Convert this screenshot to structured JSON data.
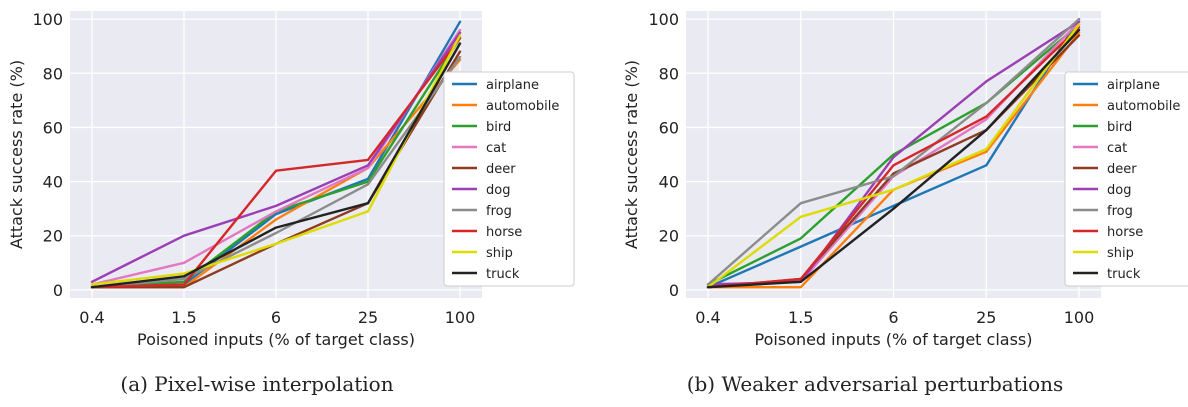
{
  "chart_data": [
    {
      "type": "line",
      "caption": "(a) Pixel-wise interpolation",
      "xlabel": "Poisoned inputs (% of target class)",
      "ylabel": "Attack success rate (%)",
      "categories": [
        "0.4",
        "1.5",
        "6",
        "25",
        "100"
      ],
      "ylim": [
        -3,
        103
      ],
      "yticks": [
        0,
        20,
        40,
        60,
        80,
        100
      ],
      "grid": true,
      "legend": "right",
      "series": [
        {
          "name": "airplane",
          "color": "#1f77b4",
          "values": [
            1,
            2,
            28,
            41,
            99
          ]
        },
        {
          "name": "automobile",
          "color": "#ff7f0e",
          "values": [
            1,
            1,
            26,
            45,
            85
          ]
        },
        {
          "name": "bird",
          "color": "#2ca02c",
          "values": [
            1,
            3,
            29,
            40,
            93
          ]
        },
        {
          "name": "cat",
          "color": "#e377c2",
          "values": [
            2,
            10,
            29,
            45,
            96
          ]
        },
        {
          "name": "deer",
          "color": "#8c3c1f",
          "values": [
            1,
            1,
            17,
            32,
            88
          ]
        },
        {
          "name": "dog",
          "color": "#9b3fb5",
          "values": [
            3,
            20,
            31,
            46,
            95
          ]
        },
        {
          "name": "frog",
          "color": "#8c8c8c",
          "values": [
            1,
            4,
            21,
            39,
            86
          ]
        },
        {
          "name": "horse",
          "color": "#d62728",
          "values": [
            1,
            2,
            44,
            48,
            93
          ]
        },
        {
          "name": "ship",
          "color": "#dcdc00",
          "values": [
            2,
            6,
            17,
            29,
            94
          ]
        },
        {
          "name": "truck",
          "color": "#222222",
          "values": [
            1,
            5,
            23,
            32,
            91
          ]
        }
      ]
    },
    {
      "type": "line",
      "caption": "(b) Weaker adversarial perturbations",
      "xlabel": "Poisoned inputs (% of target class)",
      "ylabel": "Attack success rate (%)",
      "categories": [
        "0.4",
        "1.5",
        "6",
        "25",
        "100"
      ],
      "ylim": [
        -3,
        103
      ],
      "yticks": [
        0,
        20,
        40,
        60,
        80,
        100
      ],
      "grid": true,
      "legend": "right",
      "series": [
        {
          "name": "airplane",
          "color": "#1f77b4",
          "values": [
            1,
            16,
            31,
            46,
            100
          ]
        },
        {
          "name": "automobile",
          "color": "#ff7f0e",
          "values": [
            1,
            1,
            37,
            51,
            95
          ]
        },
        {
          "name": "bird",
          "color": "#2ca02c",
          "values": [
            2,
            19,
            50,
            69,
            98
          ]
        },
        {
          "name": "cat",
          "color": "#e377c2",
          "values": [
            2,
            3,
            42,
            63,
            99
          ]
        },
        {
          "name": "deer",
          "color": "#8c3c1f",
          "values": [
            1,
            4,
            43,
            59,
            94
          ]
        },
        {
          "name": "dog",
          "color": "#9b3fb5",
          "values": [
            2,
            3,
            49,
            77,
            99
          ]
        },
        {
          "name": "frog",
          "color": "#8c8c8c",
          "values": [
            2,
            32,
            42,
            69,
            100
          ]
        },
        {
          "name": "horse",
          "color": "#d62728",
          "values": [
            1,
            4,
            46,
            64,
            97
          ]
        },
        {
          "name": "ship",
          "color": "#dcdc00",
          "values": [
            1,
            27,
            37,
            52,
            98
          ]
        },
        {
          "name": "truck",
          "color": "#222222",
          "values": [
            1,
            3,
            30,
            59,
            96
          ]
        }
      ]
    }
  ]
}
